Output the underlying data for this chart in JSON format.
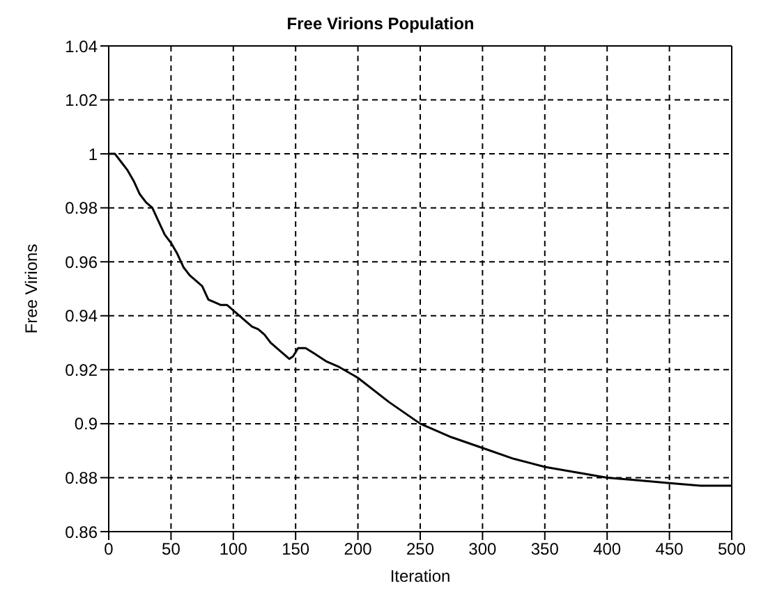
{
  "chart_data": {
    "type": "line",
    "title": "Free Virions Population",
    "xlabel": "Iteration",
    "ylabel": "Free Virions",
    "x": [
      0,
      5,
      10,
      15,
      20,
      25,
      30,
      35,
      40,
      45,
      50,
      55,
      60,
      65,
      70,
      75,
      80,
      85,
      90,
      95,
      100,
      105,
      110,
      115,
      120,
      125,
      130,
      135,
      140,
      145,
      148,
      152,
      158,
      165,
      175,
      185,
      200,
      225,
      250,
      275,
      300,
      325,
      350,
      375,
      400,
      425,
      450,
      475,
      500
    ],
    "series": [
      {
        "color": "#000000",
        "values": [
          1.0,
          1.0,
          0.997,
          0.994,
          0.99,
          0.985,
          0.982,
          0.98,
          0.975,
          0.97,
          0.967,
          0.963,
          0.958,
          0.955,
          0.953,
          0.951,
          0.946,
          0.945,
          0.944,
          0.944,
          0.942,
          0.94,
          0.938,
          0.936,
          0.935,
          0.933,
          0.93,
          0.928,
          0.926,
          0.924,
          0.925,
          0.928,
          0.928,
          0.926,
          0.923,
          0.921,
          0.917,
          0.908,
          0.9,
          0.895,
          0.891,
          0.887,
          0.884,
          0.882,
          0.88,
          0.879,
          0.878,
          0.877,
          0.877
        ]
      }
    ],
    "xlim": [
      0,
      500
    ],
    "xticks": [
      0,
      50,
      100,
      150,
      200,
      250,
      300,
      350,
      400,
      450,
      500
    ],
    "ylim": [
      0.86,
      1.04
    ],
    "yticks": [
      0.86,
      0.88,
      0.9,
      0.92,
      0.94,
      0.96,
      0.98,
      1,
      1.02,
      1.04
    ],
    "grid": true,
    "marker": "none",
    "line_style": "solid"
  }
}
